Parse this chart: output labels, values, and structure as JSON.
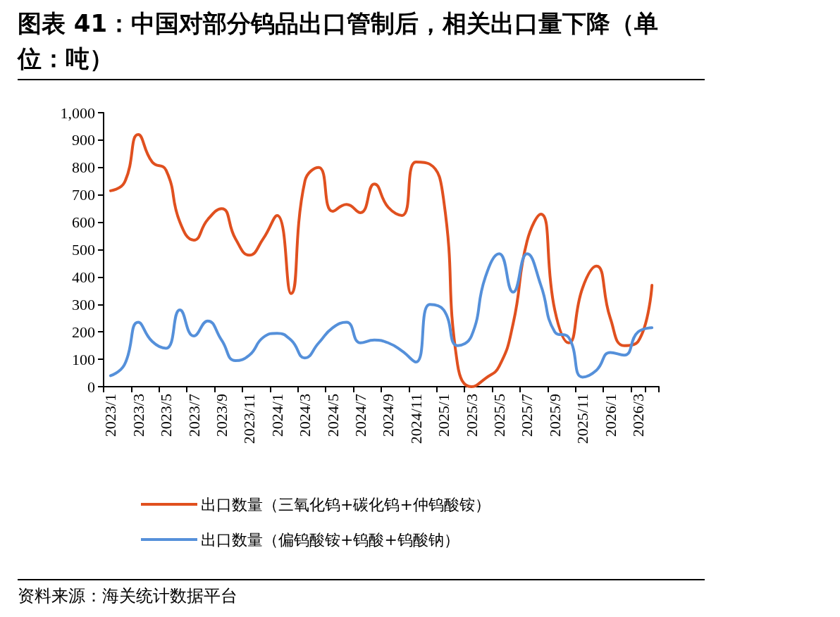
{
  "chart_data": {
    "type": "line",
    "title": "图表 41：中国对部分钨品出口管制后，相关出口量下降（单位：吨）",
    "categories": [
      "2023/1",
      null,
      "2023/3",
      null,
      "2023/5",
      null,
      "2023/7",
      null,
      "2023/9",
      null,
      "2023/11",
      null,
      "2024/1",
      null,
      "2024/3",
      null,
      "2024/5",
      null,
      "2024/7",
      null,
      "2024/9",
      null,
      "2024/11",
      null,
      "2025/1",
      null,
      "2025/3",
      null,
      "2025/5",
      null,
      "2025/7",
      null,
      "2025/9",
      null,
      "2025/11",
      null,
      "2026/1",
      null,
      "2026/3",
      null
    ],
    "series": [
      {
        "name": "出口数量（三氧化钨+碳化钨+仲钨酸铵）",
        "color": "#e0501f",
        "values": [
          715,
          745,
          920,
          820,
          790,
          600,
          535,
          610,
          650,
          540,
          480,
          540,
          625,
          340,
          750,
          800,
          640,
          665,
          635,
          740,
          655,
          625,
          820,
          812,
          680,
          80,
          0,
          30,
          75,
          230,
          530,
          630,
          280,
          160,
          360,
          440,
          250,
          150,
          165,
          370
        ]
      },
      {
        "name": "出口数量（偏钨酸铵+钨酸+钨酸钠）",
        "color": "#5590da",
        "values": [
          40,
          80,
          235,
          165,
          140,
          280,
          185,
          240,
          170,
          95,
          115,
          180,
          195,
          170,
          105,
          160,
          215,
          235,
          160,
          170,
          160,
          130,
          90,
          300,
          280,
          150,
          185,
          400,
          485,
          345,
          485,
          370,
          200,
          180,
          35,
          60,
          125,
          115,
          200,
          215
        ]
      }
    ],
    "ylim": [
      0,
      1000
    ],
    "yticks": [
      0,
      100,
      200,
      300,
      400,
      500,
      600,
      700,
      800,
      900,
      {
        "value": 1000,
        "label": "1,000"
      }
    ],
    "grid": false,
    "legend": "bottom",
    "marker": "none",
    "annotations": [
      "资料来源：海关统计数据平台"
    ]
  }
}
